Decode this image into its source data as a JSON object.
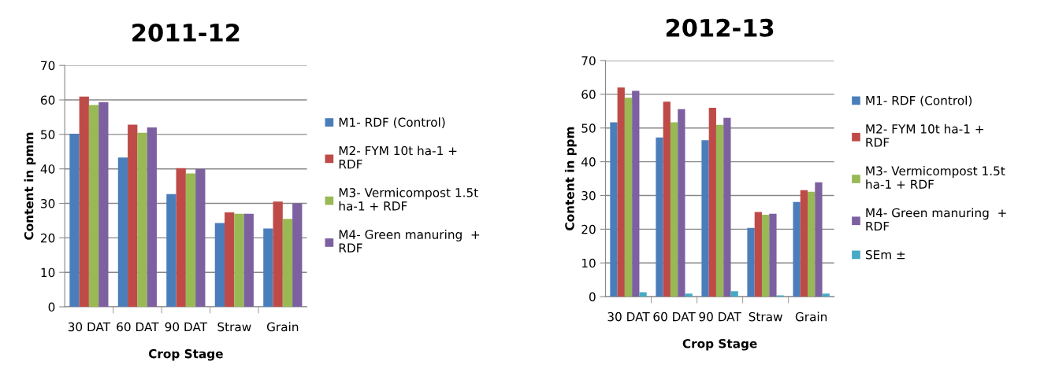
{
  "chart_data": [
    {
      "type": "bar",
      "title": "2011-12",
      "xlabel": "Crop Stage",
      "ylabel": "Content in pmm",
      "categories": [
        "30 DAT",
        "60 DAT",
        "90 DAT",
        "Straw",
        "Grain"
      ],
      "series": [
        {
          "name": "M1- RDF (Control)",
          "color": "#4a7ebb",
          "values": [
            50.2,
            43.3,
            32.7,
            24.3,
            22.7
          ]
        },
        {
          "name": "M2- FYM 10t ha-1 +\nRDF",
          "color": "#be4b48",
          "values": [
            61,
            52.8,
            40.2,
            27.4,
            30.5
          ]
        },
        {
          "name": "M3- Vermicompost 1.5t\nha-1 + RDF",
          "color": "#98b954",
          "values": [
            58.5,
            50.5,
            38.7,
            27,
            25.5
          ]
        },
        {
          "name": "M4- Green manuring  +\nRDF",
          "color": "#7d60a0",
          "values": [
            59.3,
            52,
            40,
            27,
            30
          ]
        }
      ],
      "ylim": [
        0,
        70
      ],
      "yticks": [
        0,
        10,
        20,
        30,
        40,
        50,
        60,
        70
      ],
      "grid": "y",
      "legend": "right"
    },
    {
      "type": "bar",
      "title": "2012-13",
      "xlabel": "Crop Stage",
      "ylabel": "Content in ppm",
      "categories": [
        "30 DAT",
        "60 DAT",
        "90 DAT",
        "Straw",
        "Grain"
      ],
      "series": [
        {
          "name": "M1- RDF (Control)",
          "color": "#4a7ebb",
          "values": [
            51.7,
            47.2,
            46.4,
            20.4,
            28.1
          ]
        },
        {
          "name": "M2- FYM 10t ha-1 +\nRDF",
          "color": "#be4b48",
          "values": [
            62,
            57.8,
            56,
            25.1,
            31.6
          ]
        },
        {
          "name": "M3- Vermicompost 1.5t\nha-1 + RDF",
          "color": "#98b954",
          "values": [
            59,
            51.7,
            50.9,
            24.3,
            31.1
          ]
        },
        {
          "name": "M4- Green manuring  +\nRDF",
          "color": "#7d60a0",
          "values": [
            61,
            55.6,
            53,
            24.6,
            33.9
          ]
        },
        {
          "name": "SEm ±",
          "color": "#46aac5",
          "values": [
            1.3,
            0.9,
            1.6,
            0.4,
            0.9
          ]
        }
      ],
      "ylim": [
        0,
        70
      ],
      "yticks": [
        0,
        10,
        20,
        30,
        40,
        50,
        60,
        70
      ],
      "grid": "y",
      "legend": "right"
    }
  ]
}
